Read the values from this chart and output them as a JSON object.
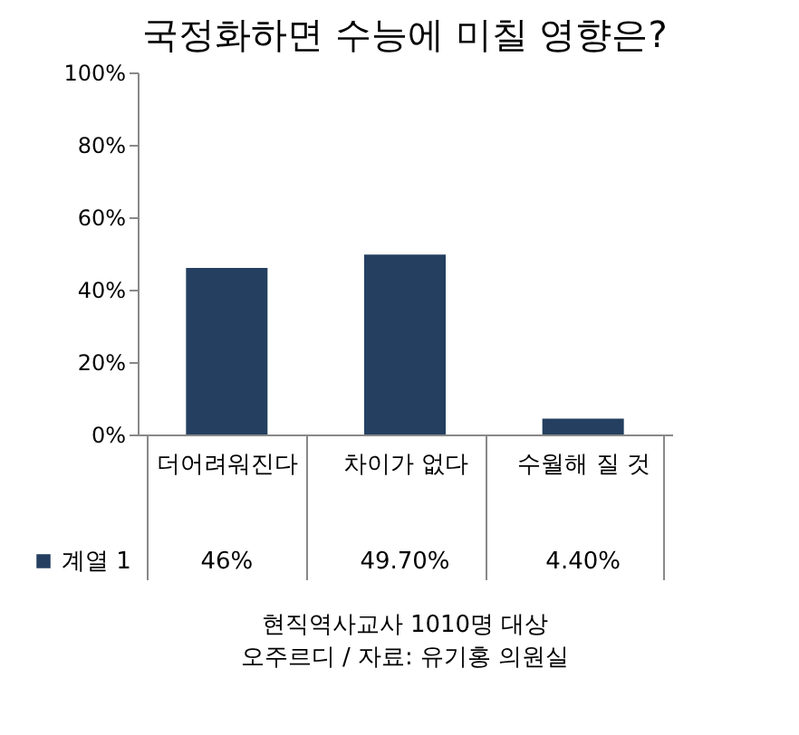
{
  "chart_data": {
    "type": "bar",
    "title": "국정화하면 수능에 미칠 영향은?",
    "categories": [
      "더어려워진다",
      "차이가 없다",
      "수월해 질 것"
    ],
    "series": [
      {
        "name": "계열 1",
        "color": "#243f60",
        "values": [
          46,
          49.7,
          4.4
        ],
        "value_labels": [
          "46%",
          "49.70%",
          "4.40%"
        ]
      }
    ],
    "ylim": [
      0,
      100
    ],
    "yticks": [
      {
        "value": 0,
        "label": "0%"
      },
      {
        "value": 20,
        "label": "20%"
      },
      {
        "value": 40,
        "label": "40%"
      },
      {
        "value": 60,
        "label": "60%"
      },
      {
        "value": 80,
        "label": "80%"
      },
      {
        "value": 100,
        "label": "100%"
      }
    ],
    "grid": false,
    "legend": "bottom",
    "annotations": [
      "현직역사교사 1010명 대상",
      "오주르디 / 자료: 유기홍 의원실"
    ]
  }
}
